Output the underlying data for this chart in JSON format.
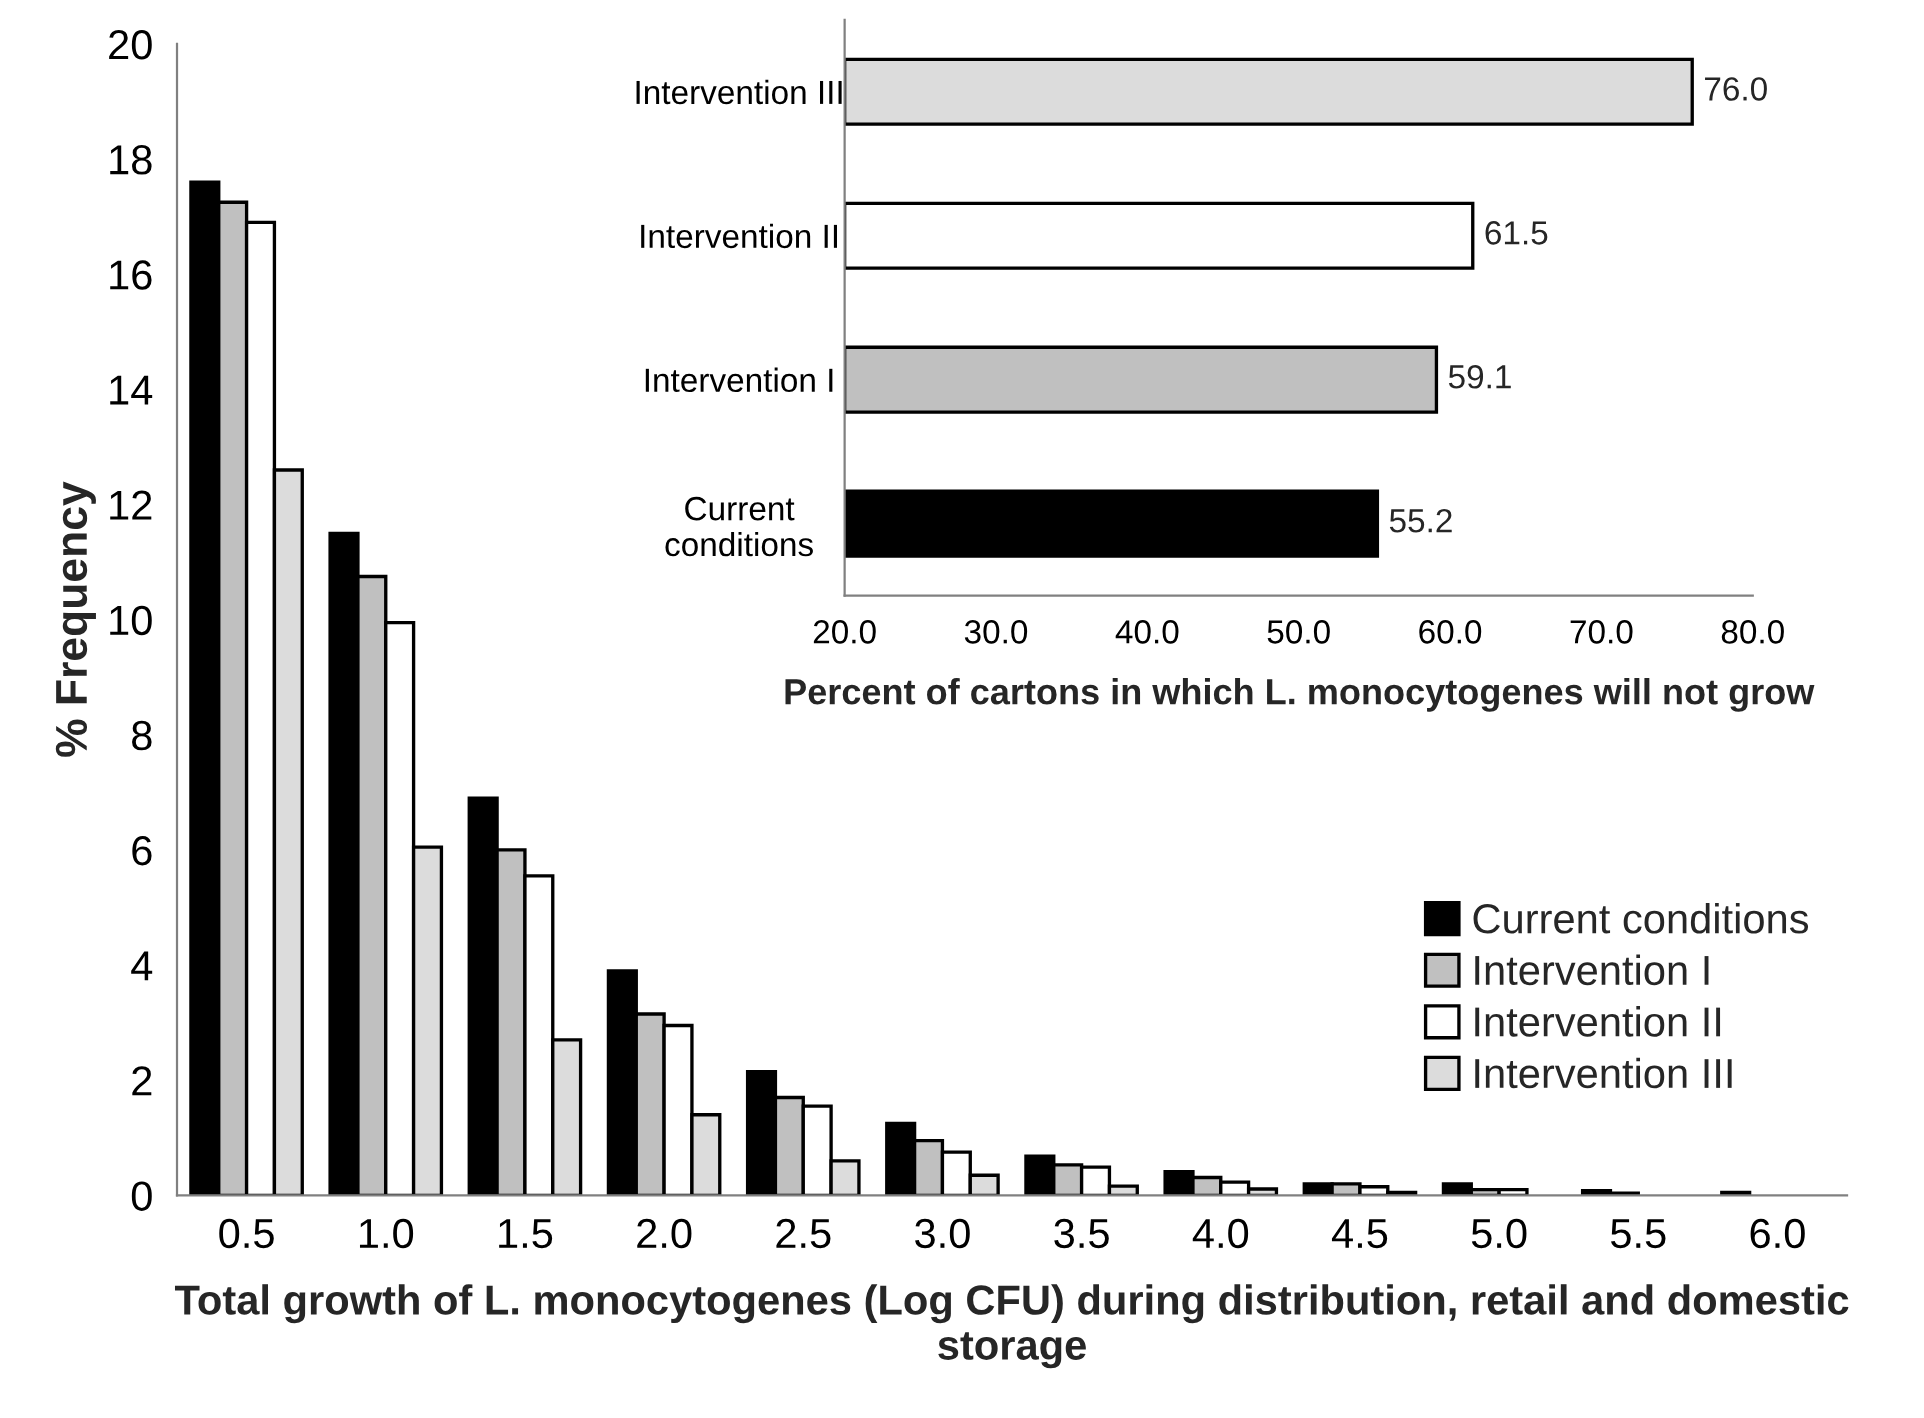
{
  "chart_data": [
    {
      "type": "bar",
      "xlabel": "Total growth of L. monocytogenes (Log CFU) during distribution, retail and domestic storage",
      "ylabel": "% Frequency",
      "categories": [
        "0.5",
        "1.0",
        "1.5",
        "2.0",
        "2.5",
        "3.0",
        "3.5",
        "4.0",
        "4.5",
        "5.0",
        "5.5",
        "6.0"
      ],
      "ylim": [
        0,
        20
      ],
      "yticks": [
        0,
        2,
        4,
        6,
        8,
        10,
        12,
        14,
        16,
        18,
        20
      ],
      "legend": "right",
      "grid": false,
      "series": [
        {
          "name": "Current conditions",
          "color": "#000000",
          "values": [
            17.6,
            11.5,
            6.9,
            3.9,
            2.15,
            1.25,
            0.68,
            0.41,
            0.2,
            0.2,
            0.08,
            0.05
          ]
        },
        {
          "name": "Intervention I",
          "color": "#c0c0c0",
          "values": [
            17.25,
            10.75,
            6.0,
            3.15,
            1.7,
            0.95,
            0.53,
            0.31,
            0.2,
            0.1,
            0.04,
            null
          ]
        },
        {
          "name": "Intervention II",
          "color": "#ffffff",
          "values": [
            16.9,
            9.95,
            5.55,
            2.95,
            1.55,
            0.75,
            0.49,
            0.23,
            0.15,
            0.1,
            null,
            null
          ]
        },
        {
          "name": "Intervention III",
          "color": "#dcdcdc",
          "values": [
            12.6,
            6.05,
            2.7,
            1.4,
            0.6,
            0.35,
            0.16,
            0.11,
            0.05,
            null,
            null,
            null
          ]
        }
      ]
    },
    {
      "type": "bar",
      "orientation": "horizontal",
      "xlabel": "Percent of cartons in which L. monocytogenes will not grow",
      "categories": [
        "Intervention III",
        "Intervention II",
        "Intervention I",
        "Current\nconditions"
      ],
      "values": [
        76.0,
        61.5,
        59.1,
        55.2
      ],
      "value_labels": [
        "76.0",
        "61.5",
        "59.1",
        "55.2"
      ],
      "colors": [
        "#dcdcdc",
        "#ffffff",
        "#c0c0c0",
        "#000000"
      ],
      "xlim": [
        20,
        80
      ],
      "xticks": [
        {
          "value": 20,
          "label": "20.0"
        },
        {
          "value": 30,
          "label": "30.0"
        },
        {
          "value": 40,
          "label": "40.0"
        },
        {
          "value": 50,
          "label": "50.0"
        },
        {
          "value": 60,
          "label": "60.0"
        },
        {
          "value": 70,
          "label": "70.0"
        },
        {
          "value": 80,
          "label": "80.0"
        }
      ],
      "grid": false
    }
  ]
}
